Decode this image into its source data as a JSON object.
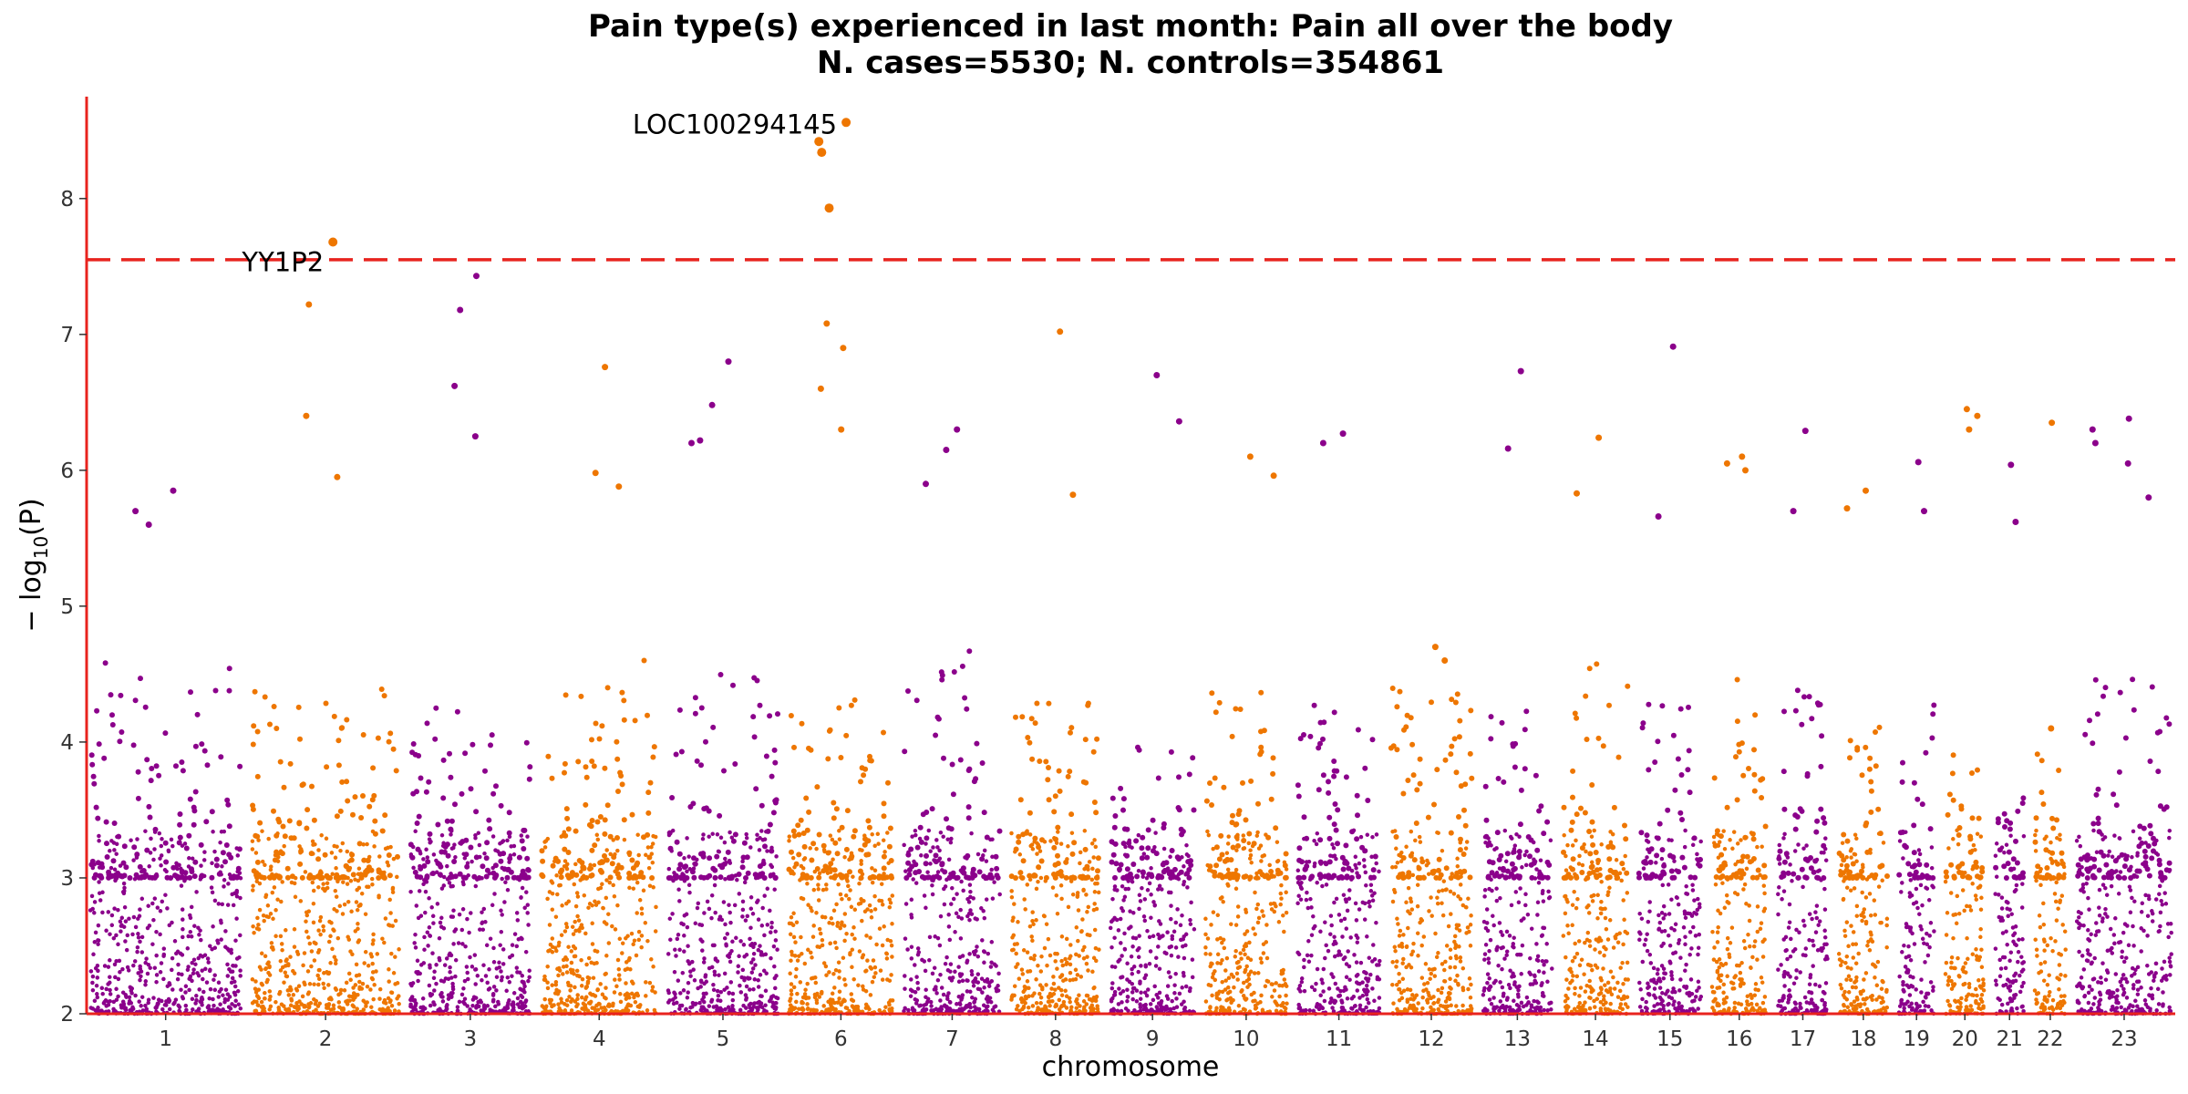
{
  "chart_data": {
    "type": "scatter",
    "title": "Pain type(s) experienced in last month: Pain all over the body",
    "subtitle": "N. cases=5530; N. controls=354861",
    "xlabel": "chromosome",
    "ylabel_prefix": "− log",
    "ylabel_sub": "10",
    "ylabel_suffix": "(P)",
    "ylim": [
      2,
      8.75
    ],
    "yticks": [
      2,
      3,
      4,
      5,
      6,
      7,
      8
    ],
    "significance_threshold": 7.55,
    "grid": false,
    "colors": {
      "odd_chromosome": "#8B008B",
      "even_chromosome": "#EE7600",
      "threshold_line": "#E8231E",
      "axis": "#E8231E"
    },
    "chromosomes": [
      {
        "label": "1",
        "length": 248,
        "peak": 4.6,
        "top": [
          5.85,
          5.7,
          5.6
        ]
      },
      {
        "label": "2",
        "length": 242,
        "peak": 4.4,
        "top": [
          7.68,
          7.22,
          6.4,
          5.95
        ]
      },
      {
        "label": "3",
        "length": 198,
        "peak": 4.3,
        "top": [
          7.43,
          7.18,
          6.62,
          6.25
        ]
      },
      {
        "label": "4",
        "length": 190,
        "peak": 4.6,
        "top": [
          6.76,
          5.98,
          5.88
        ]
      },
      {
        "label": "5",
        "length": 181,
        "peak": 4.5,
        "top": [
          6.8,
          6.48,
          6.22,
          6.2
        ]
      },
      {
        "label": "6",
        "length": 171,
        "peak": 4.4,
        "top": [
          8.56,
          8.42,
          8.34,
          7.93,
          7.08,
          6.9,
          6.6,
          6.3
        ]
      },
      {
        "label": "7",
        "length": 159,
        "peak": 4.7,
        "top": [
          6.3,
          6.15,
          5.9
        ]
      },
      {
        "label": "8",
        "length": 145,
        "peak": 4.4,
        "top": [
          7.02,
          5.82
        ]
      },
      {
        "label": "9",
        "length": 138,
        "peak": 4.0,
        "top": [
          6.7,
          6.36
        ]
      },
      {
        "label": "10",
        "length": 134,
        "peak": 4.4,
        "top": [
          6.1,
          5.96
        ]
      },
      {
        "label": "11",
        "length": 135,
        "peak": 4.3,
        "top": [
          6.27,
          6.2
        ]
      },
      {
        "label": "12",
        "length": 133,
        "peak": 4.4,
        "top": [
          4.7,
          4.6
        ]
      },
      {
        "label": "13",
        "length": 114,
        "peak": 4.3,
        "top": [
          6.73,
          6.16
        ]
      },
      {
        "label": "14",
        "length": 107,
        "peak": 4.6,
        "top": [
          6.24,
          5.83
        ]
      },
      {
        "label": "15",
        "length": 102,
        "peak": 4.3,
        "top": [
          6.91,
          5.66
        ]
      },
      {
        "label": "16",
        "length": 90,
        "peak": 4.5,
        "top": [
          6.1,
          6.05,
          6.0
        ]
      },
      {
        "label": "17",
        "length": 83,
        "peak": 4.4,
        "top": [
          6.29,
          5.7
        ]
      },
      {
        "label": "18",
        "length": 80,
        "peak": 4.3,
        "top": [
          5.85,
          5.72
        ]
      },
      {
        "label": "19",
        "length": 59,
        "peak": 4.4,
        "top": [
          6.06,
          5.7
        ]
      },
      {
        "label": "20",
        "length": 64,
        "peak": 4.0,
        "top": [
          6.45,
          6.4,
          6.3
        ]
      },
      {
        "label": "21",
        "length": 47,
        "peak": 4.0,
        "top": [
          6.04,
          5.62
        ]
      },
      {
        "label": "22",
        "length": 51,
        "peak": 4.0,
        "top": [
          6.35,
          4.1
        ]
      },
      {
        "label": "23",
        "length": 156,
        "peak": 4.5,
        "top": [
          6.38,
          6.3,
          6.2,
          6.05,
          5.8
        ]
      }
    ],
    "annotations": [
      {
        "text": "LOC100294145",
        "chromosome": "6",
        "value": 8.56
      },
      {
        "text": "YY1P2",
        "chromosome": "2",
        "value": 7.68
      }
    ]
  }
}
